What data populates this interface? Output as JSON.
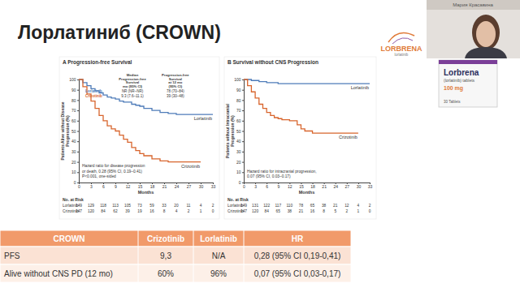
{
  "slide": {
    "title": "Лорлатиниб (CROWN)",
    "presenter": "Мария Красавина",
    "logo": "LORBRENA",
    "logo_subtitle": "lorlatinib",
    "package": [
      "Lorbrena",
      "(lorlatinib) tablets",
      "100 mg",
      "30 Tablets"
    ]
  },
  "chart_data": [
    {
      "type": "line",
      "title": "A  Progression-free Survival",
      "x_label": "Months",
      "y_label": [
        "Patients Alive without Disease",
        "Progression (%)"
      ],
      "xlim": [
        0,
        33
      ],
      "xticks": [
        0,
        3,
        6,
        9,
        12,
        15,
        18,
        21,
        24,
        27,
        30,
        33
      ],
      "ylim": [
        0,
        100
      ],
      "yticks": [
        0,
        10,
        20,
        30,
        40,
        50,
        60,
        70,
        80,
        90,
        100
      ],
      "series": [
        {
          "name": "Lorlatinib",
          "color": "#4f7cb9",
          "line_style": "step",
          "x": [
            0,
            1,
            2,
            3,
            4,
            5,
            6,
            7,
            8,
            9,
            10,
            11,
            12,
            13,
            14,
            15,
            16,
            18,
            20,
            22,
            24,
            27,
            30,
            33
          ],
          "values": [
            100,
            97,
            94,
            91,
            89,
            87,
            85,
            83,
            82,
            81,
            79,
            78,
            78,
            76,
            75,
            74,
            72,
            70,
            68,
            67,
            66,
            66,
            66,
            66
          ]
        },
        {
          "name": "Crizotinib",
          "color": "#d8652d",
          "line_style": "step",
          "x": [
            0,
            1,
            2,
            3,
            4,
            5,
            6,
            7,
            8,
            9,
            10,
            11,
            12,
            13,
            14,
            15,
            16,
            18,
            20,
            22,
            24,
            27,
            30
          ],
          "values": [
            100,
            93,
            86,
            79,
            72,
            65,
            60,
            55,
            52,
            50,
            46,
            42,
            39,
            34,
            31,
            28,
            26,
            23,
            21,
            20,
            20,
            20,
            20
          ]
        }
      ],
      "stats": {
        "headers": [
          [
            "Median",
            "Progression-free",
            "Survival",
            "mo (95% CI)"
          ],
          [
            "Progression-free",
            "Survival",
            "at 12 mo",
            "(95% CI)"
          ]
        ],
        "rows": [
          [
            "NR (NR–NR)",
            "78 (70–84)"
          ],
          [
            "9.3 (7.6–11.1)",
            "39 (30–48)"
          ]
        ]
      },
      "annotation": [
        "Hazard ratio for disease progression",
        "or death, 0.28 (95% CI, 0.19–0.41)",
        "P<0.001, one-sided"
      ],
      "risk_table": {
        "title": "No. at Risk",
        "counts": [
          [
            149,
            129,
            118,
            113,
            105,
            73,
            59,
            33,
            20,
            11,
            4,
            2
          ],
          [
            147,
            120,
            84,
            62,
            39,
            19,
            16,
            8,
            4,
            2,
            1,
            0
          ]
        ]
      }
    },
    {
      "type": "line",
      "title": "B  Survival without CNS Progression",
      "x_label": "Months",
      "y_label": [
        "Patients without Intracranial",
        "Progression (%)"
      ],
      "xlim": [
        0,
        33
      ],
      "xticks": [
        0,
        3,
        6,
        9,
        12,
        15,
        18,
        21,
        24,
        27,
        30,
        33
      ],
      "ylim": [
        0,
        100
      ],
      "yticks": [
        0,
        10,
        20,
        30,
        40,
        50,
        60,
        70,
        80,
        90,
        100
      ],
      "series": [
        {
          "name": "Lorlatinib",
          "color": "#4f7cb9",
          "line_style": "step",
          "x": [
            0,
            2,
            4,
            6,
            9,
            12,
            33
          ],
          "values": [
            100,
            99,
            98,
            97,
            96,
            96,
            96
          ]
        },
        {
          "name": "Crizotinib",
          "color": "#d8652d",
          "line_style": "step",
          "x": [
            0,
            1,
            2,
            3,
            4,
            5,
            6,
            7,
            8,
            9,
            10,
            12,
            14,
            15,
            16,
            18,
            21,
            24,
            27,
            30
          ],
          "values": [
            100,
            94,
            88,
            82,
            76,
            72,
            68,
            65,
            63,
            62,
            61,
            60,
            56,
            52,
            50,
            48,
            48,
            48,
            48,
            48
          ]
        }
      ],
      "annotation": [
        "Hazard ratio for intracranial progression,",
        "0.07 (95% CI, 0.03–0.17)"
      ],
      "risk_table": {
        "title": "No. at Risk",
        "counts": [
          [
            149,
            131,
            122,
            117,
            110,
            78,
            65,
            38,
            21,
            12,
            4,
            2
          ],
          [
            147,
            120,
            84,
            65,
            38,
            21,
            16,
            8,
            5,
            2,
            1,
            0
          ]
        ]
      }
    }
  ],
  "table": {
    "header": [
      "CROWN",
      "Crizotinib",
      "Lorlatinib",
      "HR"
    ],
    "rows": [
      [
        "PFS",
        "9,3",
        "N/A",
        "0,28 (95% CI 0,19-0,41)"
      ],
      [
        "Alive without CNS PD (12 mo)",
        "60%",
        "96%",
        "0,07 (95% CI 0,03-0,17)"
      ]
    ]
  }
}
